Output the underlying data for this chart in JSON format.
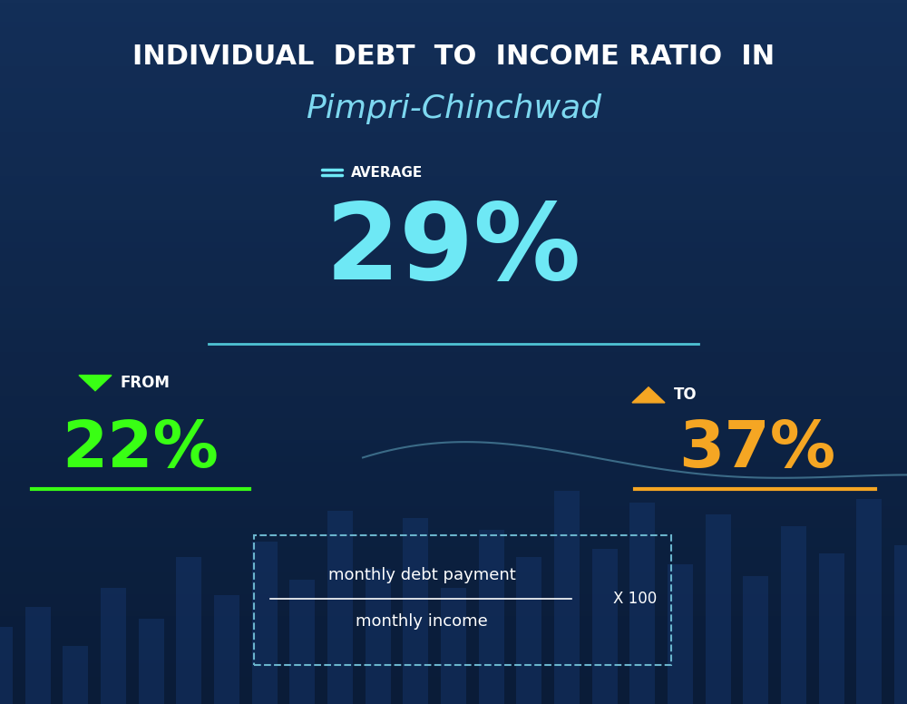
{
  "bg_color_top": "#0a1f3d",
  "bg_color_bottom": "#0d2a50",
  "title_line1": "INDIVIDUAL  DEBT  TO  INCOME RATIO  IN",
  "title_line2": "Pimpri-Chinchwad",
  "title_line1_color": "#ffffff",
  "title_line2_color": "#7dd8f0",
  "average_label": "AVERAGE",
  "average_value": "29%",
  "average_color": "#6ee8f5",
  "average_label_color": "#ffffff",
  "from_label": "FROM",
  "from_value": "22%",
  "from_color": "#39ff14",
  "from_label_color": "#ffffff",
  "to_label": "TO",
  "to_value": "37%",
  "to_color": "#f5a623",
  "to_label_color": "#ffffff",
  "formula_line1": "monthly debt payment",
  "formula_line2": "monthly income",
  "formula_multiplier": "X 100",
  "formula_text_color": "#ffffff",
  "underline_avg_color": "#4fc3d4",
  "underline_from_color": "#39ff14",
  "underline_to_color": "#f5a623"
}
